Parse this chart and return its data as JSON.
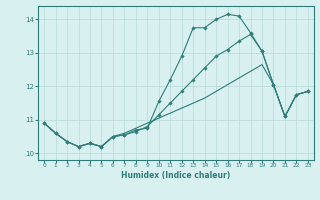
{
  "xlabel": "Humidex (Indice chaleur)",
  "bg_color": "#d8f0f0",
  "grid_color": "#b8d8d8",
  "line_color": "#2e7d7a",
  "xlim": [
    -0.5,
    23.5
  ],
  "ylim": [
    9.8,
    14.4
  ],
  "xticks": [
    0,
    1,
    2,
    3,
    4,
    5,
    6,
    7,
    8,
    9,
    10,
    11,
    12,
    13,
    14,
    15,
    16,
    17,
    18,
    19,
    20,
    21,
    22,
    23
  ],
  "yticks": [
    10,
    11,
    12,
    13,
    14
  ],
  "line1": {
    "x": [
      0,
      1,
      2,
      3,
      4,
      5,
      6,
      7,
      8,
      9,
      10,
      11,
      12,
      13,
      14,
      15,
      16,
      17,
      18,
      19,
      20,
      21,
      22,
      23
    ],
    "y": [
      10.9,
      10.6,
      10.35,
      10.2,
      10.3,
      10.2,
      10.5,
      10.55,
      10.7,
      10.75,
      11.55,
      12.2,
      12.9,
      13.75,
      13.75,
      14.0,
      14.15,
      14.1,
      13.6,
      13.05,
      12.05,
      11.1,
      11.75,
      11.85
    ]
  },
  "line2": {
    "x": [
      0,
      1,
      2,
      3,
      4,
      5,
      6,
      7,
      8,
      9,
      10,
      11,
      12,
      13,
      14,
      15,
      16,
      17,
      18,
      19,
      20,
      21,
      22,
      23
    ],
    "y": [
      10.9,
      10.6,
      10.35,
      10.2,
      10.3,
      10.2,
      10.5,
      10.55,
      10.65,
      10.8,
      11.15,
      11.5,
      11.85,
      12.2,
      12.55,
      12.9,
      13.1,
      13.35,
      13.55,
      13.05,
      12.05,
      11.1,
      11.75,
      11.85
    ]
  },
  "line3": {
    "x": [
      0,
      1,
      2,
      3,
      4,
      5,
      6,
      7,
      8,
      9,
      10,
      11,
      12,
      13,
      14,
      15,
      16,
      17,
      18,
      19,
      20,
      21,
      22,
      23
    ],
    "y": [
      10.9,
      10.6,
      10.35,
      10.2,
      10.3,
      10.2,
      10.5,
      10.6,
      10.75,
      10.9,
      11.05,
      11.2,
      11.35,
      11.5,
      11.65,
      11.85,
      12.05,
      12.25,
      12.45,
      12.65,
      12.05,
      11.1,
      11.75,
      11.85
    ]
  }
}
